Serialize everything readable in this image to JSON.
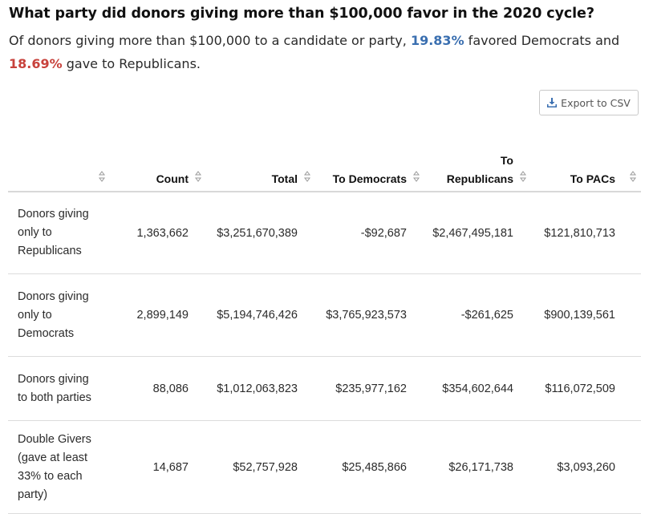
{
  "heading": {
    "title": "What party did donors giving more than $100,000 favor in the 2020 cycle?",
    "subtitle_part1": "Of donors giving more than $100,000 to a candidate or party, ",
    "dem_pct": "19.83%",
    "subtitle_part2": " favored Democrats and ",
    "rep_pct": "18.69%",
    "subtitle_part3": " gave to Republicans."
  },
  "colors": {
    "democrat": "#3a6fb0",
    "republican": "#c8423c"
  },
  "toolbar": {
    "export_label": "Export to CSV",
    "export_icon": "download-icon"
  },
  "table": {
    "columns": [
      "",
      "Count",
      "Total",
      "To Democrats",
      "To Republicans",
      "To PACs"
    ],
    "rows": [
      {
        "label": "Donors giving only to Republicans",
        "count": "1,363,662",
        "total": "$3,251,670,389",
        "to_dem": "-$92,687",
        "to_rep": "$2,467,495,181",
        "to_pacs": "$121,810,713"
      },
      {
        "label": "Donors giving only to Democrats",
        "count": "2,899,149",
        "total": "$5,194,746,426",
        "to_dem": "$3,765,923,573",
        "to_rep": "-$261,625",
        "to_pacs": "$900,139,561"
      },
      {
        "label": "Donors giving to both parties",
        "count": "88,086",
        "total": "$1,012,063,823",
        "to_dem": "$235,977,162",
        "to_rep": "$354,602,644",
        "to_pacs": "$116,072,509"
      },
      {
        "label": "Double Givers (gave at least 33% to each party)",
        "count": "14,687",
        "total": "$52,757,928",
        "to_dem": "$25,485,866",
        "to_rep": "$26,171,738",
        "to_pacs": "$3,093,260"
      }
    ]
  }
}
